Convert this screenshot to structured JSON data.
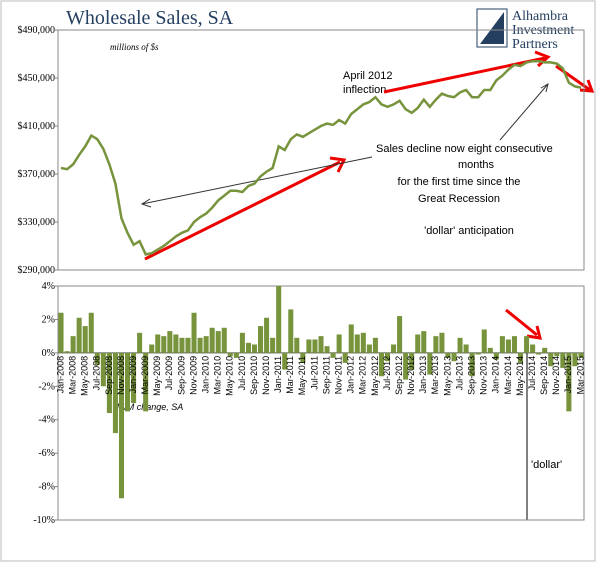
{
  "logo": [
    "Alhambra",
    "Investment",
    "Partners"
  ],
  "chart_data": [
    {
      "type": "line",
      "title": "Wholesale Sales, SA",
      "subtitle": "millions of $s",
      "color": "#77933c",
      "annotations": [
        "April 2012",
        "inflection",
        "Sales decline now eight consecutive",
        "months",
        "for the first time since the",
        "Great Recession",
        "'dollar' anticipation"
      ],
      "values": [
        375000,
        374000,
        378000,
        386000,
        393000,
        402000,
        399000,
        391000,
        378000,
        362000,
        333000,
        321000,
        311000,
        314000,
        303000,
        304000,
        307000,
        310000,
        314000,
        318000,
        321000,
        323000,
        330000,
        334000,
        337000,
        342000,
        348000,
        352000,
        356000,
        356000,
        355000,
        360000,
        362000,
        368000,
        372000,
        375000,
        393000,
        390000,
        399000,
        403000,
        401000,
        404000,
        407000,
        410000,
        412000,
        411000,
        415000,
        412000,
        420000,
        424000,
        428000,
        430000,
        434000,
        428000,
        426000,
        428000,
        431000,
        424000,
        421000,
        425000,
        432000,
        426000,
        432000,
        437000,
        435000,
        434000,
        438000,
        440000,
        434000,
        434000,
        440000,
        440000,
        448000,
        452000,
        457000,
        461000,
        460000,
        463000,
        464000,
        464000,
        463000,
        463000,
        462000,
        458000,
        446000,
        443000,
        442000
      ],
      "ylim": [
        290000,
        490000
      ],
      "yticks": [
        {
          "value": 290000,
          "label": "$290,000"
        },
        {
          "value": 330000,
          "label": "$330,000"
        },
        {
          "value": 370000,
          "label": "$370,000"
        },
        {
          "value": 410000,
          "label": "$410,000"
        },
        {
          "value": 450000,
          "label": "$450,000"
        },
        {
          "value": 490000,
          "label": "$490,000"
        }
      ]
    },
    {
      "type": "bar",
      "color": "#77933c",
      "y_label": "M/M change, SA",
      "annotation": "'dollar'",
      "categories": [
        "Jan-2008",
        null,
        "Mar-2008",
        null,
        "May-2008",
        null,
        "Jul-2008",
        null,
        "Sep-2008",
        null,
        "Nov-2008",
        null,
        "Jan-2009",
        null,
        "Mar-2009",
        null,
        "May-2009",
        null,
        "Jul-2009",
        null,
        "Sep-2009",
        null,
        "Nov-2009",
        null,
        "Jan-2010",
        null,
        "Mar-2010",
        null,
        "May-2010",
        null,
        "Jul-2010",
        null,
        "Sep-2010",
        null,
        "Nov-2010",
        null,
        "Jan-2011",
        null,
        "Mar-2011",
        null,
        "May-2011",
        null,
        "Jul-2011",
        null,
        "Sep-2011",
        null,
        "Nov-2011",
        null,
        "Jan-2012",
        null,
        "Mar-2012",
        null,
        "May-2012",
        null,
        "Jul-2012",
        null,
        "Sep-2012",
        null,
        "Nov-2012",
        null,
        "Jan-2013",
        null,
        "Mar-2013",
        null,
        "May-2013",
        null,
        "Jul-2013",
        null,
        "Sep-2013",
        null,
        "Nov-2013",
        null,
        "Jan-2014",
        null,
        "Mar-2014",
        null,
        "May-2014",
        null,
        "Jul-2014",
        null,
        "Sep-2014",
        null,
        "Nov-2014",
        null,
        "Jan-2015",
        null,
        "Mar-2015"
      ],
      "values": [
        2.4,
        0.1,
        1.0,
        2.1,
        1.6,
        2.4,
        -0.7,
        -2.0,
        -3.6,
        -4.8,
        -8.7,
        -3.5,
        -3.0,
        1.2,
        -3.5,
        0.5,
        1.1,
        1.0,
        1.3,
        1.1,
        0.9,
        0.9,
        2.4,
        0.9,
        1.0,
        1.5,
        1.3,
        1.5,
        -0.2,
        -0.3,
        1.2,
        0.6,
        0.5,
        1.6,
        2.1,
        0.9,
        4.0,
        -1.0,
        2.6,
        0.9,
        -0.6,
        0.8,
        0.8,
        1.0,
        0.4,
        -0.3,
        1.1,
        -0.6,
        1.7,
        1.1,
        1.2,
        0.5,
        0.9,
        -1.4,
        -0.5,
        0.5,
        2.2,
        -1.6,
        -1.0,
        1.1,
        1.3,
        -1.3,
        1.0,
        1.2,
        -0.3,
        -0.5,
        0.9,
        0.5,
        -1.4,
        -0.1,
        1.4,
        0.3,
        -0.4,
        1.0,
        0.8,
        1.0,
        -0.6,
        1.0,
        0.5,
        -0.1,
        0.3,
        -0.8,
        -0.2,
        -0.9,
        -3.5,
        -0.8,
        -0.3
      ],
      "ylim": [
        -10,
        4
      ],
      "yticks": [
        {
          "value": -10,
          "label": "-10%"
        },
        {
          "value": -8,
          "label": "-8%"
        },
        {
          "value": -6,
          "label": "-6%"
        },
        {
          "value": -4,
          "label": "-4%"
        },
        {
          "value": -2,
          "label": "-2%"
        },
        {
          "value": 0,
          "label": "0%"
        },
        {
          "value": 2,
          "label": "2%"
        },
        {
          "value": 4,
          "label": "4%"
        }
      ]
    }
  ]
}
